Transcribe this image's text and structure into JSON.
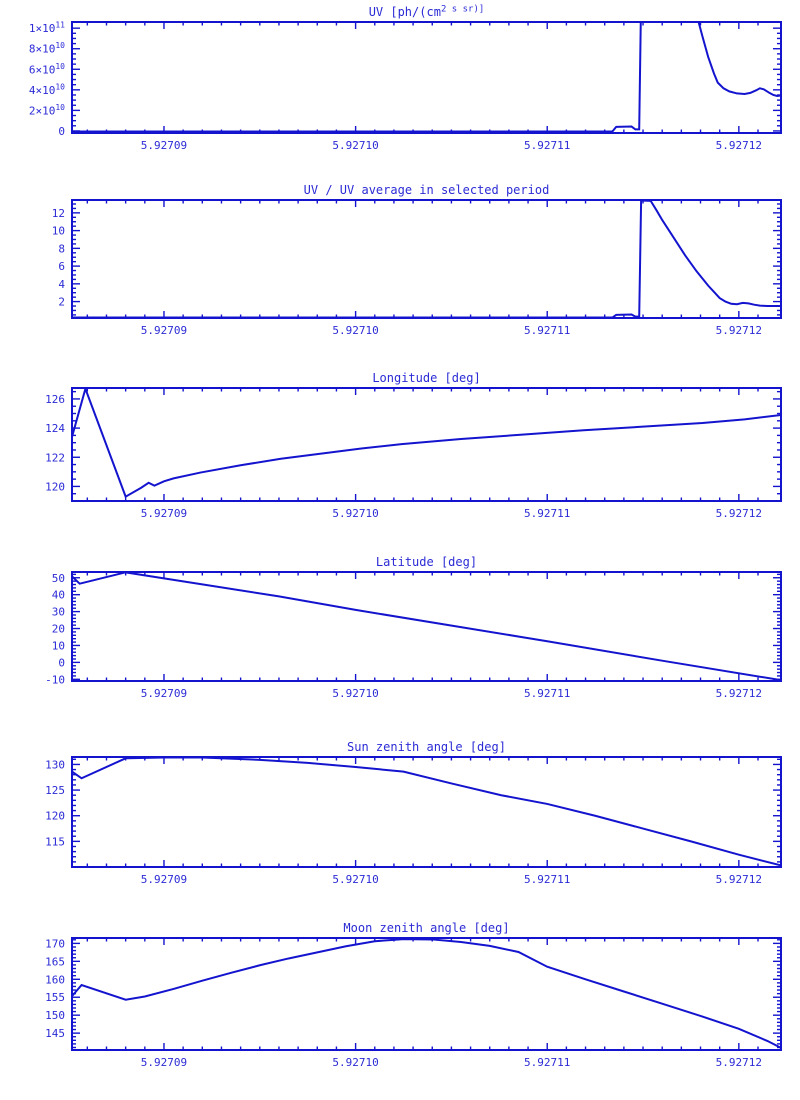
{
  "page": {
    "background": "#ffffff",
    "line_color": "#1414cf",
    "axis_color": "#1414cf",
    "text_color": "#2b2bd6"
  },
  "chart_data": [
    {
      "type": "line",
      "title": "UV [ph/(cm^2 s sr)]",
      "xlabel": "",
      "ylabel": "",
      "legend": "none",
      "grid": false,
      "xlim": [
        5.9270852,
        5.9271222
      ],
      "xticks": {
        "values": [
          5.92709,
          5.9271,
          5.92711,
          5.92712
        ],
        "labels": [
          "5.92709",
          "5.92710",
          "5.92711",
          "5.92712"
        ]
      },
      "x_minor_step": 1e-06,
      "ylim": [
        -2000000000.0,
        106000000000.0
      ],
      "yticks": {
        "values": [
          0,
          20000000000.0,
          40000000000.0,
          60000000000.0,
          80000000000.0,
          100000000000.0
        ],
        "labels": [
          "0",
          "2×10^10",
          "4×10^10",
          "6×10^10",
          "8×10^10",
          "1×10^11"
        ]
      },
      "y_minor_step": 5000000000.0,
      "points": [
        [
          5.9270852,
          -500000000.0
        ],
        [
          5.9271134,
          -500000000.0
        ],
        [
          5.9271136,
          4000000000.0
        ],
        [
          5.9271144,
          4300000000.0
        ],
        [
          5.9271146,
          1500000000.0
        ],
        [
          5.9271148,
          1500000000.0
        ],
        [
          5.9271149,
          130000000000.0
        ],
        [
          5.9271177,
          130000000000.0
        ],
        [
          5.9271179,
          106000000000.0
        ],
        [
          5.9271181,
          92000000000.0
        ],
        [
          5.9271184,
          72000000000.0
        ],
        [
          5.9271187,
          56000000000.0
        ],
        [
          5.9271189,
          47000000000.0
        ],
        [
          5.9271192,
          41500000000.0
        ],
        [
          5.9271195,
          38500000000.0
        ],
        [
          5.9271199,
          36500000000.0
        ],
        [
          5.9271203,
          36000000000.0
        ],
        [
          5.9271206,
          37000000000.0
        ],
        [
          5.9271209,
          39500000000.0
        ],
        [
          5.9271211,
          41500000000.0
        ],
        [
          5.9271213,
          40500000000.0
        ],
        [
          5.9271216,
          37000000000.0
        ],
        [
          5.9271218,
          35000000000.0
        ],
        [
          5.927122,
          34000000000.0
        ],
        [
          5.9271222,
          34500000000.0
        ]
      ]
    },
    {
      "type": "line",
      "title": "UV / UV average in selected period",
      "xlabel": "",
      "ylabel": "",
      "legend": "none",
      "grid": false,
      "xlim": [
        5.9270852,
        5.9271222
      ],
      "xticks": {
        "values": [
          5.92709,
          5.9271,
          5.92711,
          5.92712
        ],
        "labels": [
          "5.92709",
          "5.92710",
          "5.92711",
          "5.92712"
        ]
      },
      "x_minor_step": 1e-06,
      "ylim": [
        0.15,
        13.45
      ],
      "yticks": {
        "values": [
          2,
          4,
          6,
          8,
          10,
          12
        ],
        "labels": [
          "2",
          "4",
          "6",
          "8",
          "10",
          "12"
        ]
      },
      "y_minor_step": 0.5,
      "points": [
        [
          5.9270852,
          0.2
        ],
        [
          5.9271134,
          0.2
        ],
        [
          5.9271136,
          0.5
        ],
        [
          5.9271144,
          0.55
        ],
        [
          5.9271146,
          0.3
        ],
        [
          5.9271148,
          0.3
        ],
        [
          5.9271149,
          13.4
        ],
        [
          5.9271154,
          13.35
        ],
        [
          5.9271157,
          12.3
        ],
        [
          5.927116,
          11.2
        ],
        [
          5.9271163,
          10.2
        ],
        [
          5.9271166,
          9.2
        ],
        [
          5.9271169,
          8.2
        ],
        [
          5.9271172,
          7.2
        ],
        [
          5.9271175,
          6.3
        ],
        [
          5.9271178,
          5.4
        ],
        [
          5.9271181,
          4.6
        ],
        [
          5.9271184,
          3.8
        ],
        [
          5.9271187,
          3.1
        ],
        [
          5.927119,
          2.4
        ],
        [
          5.9271193,
          2.0
        ],
        [
          5.9271196,
          1.75
        ],
        [
          5.9271199,
          1.7
        ],
        [
          5.9271202,
          1.85
        ],
        [
          5.9271205,
          1.8
        ],
        [
          5.9271208,
          1.65
        ],
        [
          5.9271211,
          1.55
        ],
        [
          5.9271215,
          1.5
        ],
        [
          5.9271222,
          1.5
        ]
      ]
    },
    {
      "type": "line",
      "title": "Longitude [deg]",
      "xlabel": "",
      "ylabel": "",
      "legend": "none",
      "grid": false,
      "xlim": [
        5.9270852,
        5.9271222
      ],
      "xticks": {
        "values": [
          5.92709,
          5.9271,
          5.92711,
          5.92712
        ],
        "labels": [
          "5.92709",
          "5.92710",
          "5.92711",
          "5.92712"
        ]
      },
      "x_minor_step": 1e-06,
      "ylim": [
        119.0,
        126.75
      ],
      "yticks": {
        "values": [
          120,
          122,
          124,
          126
        ],
        "labels": [
          "120",
          "122",
          "124",
          "126"
        ]
      },
      "y_minor_step": 0.5,
      "points": [
        [
          5.9270852,
          123.4
        ],
        [
          5.9270859,
          126.7
        ],
        [
          5.927088,
          119.3
        ],
        [
          5.9270888,
          119.9
        ],
        [
          5.9270892,
          120.25
        ],
        [
          5.9270895,
          120.05
        ],
        [
          5.92709,
          120.35
        ],
        [
          5.9270905,
          120.55
        ],
        [
          5.9270919,
          120.95
        ],
        [
          5.927094,
          121.45
        ],
        [
          5.9270961,
          121.9
        ],
        [
          5.9270982,
          122.25
        ],
        [
          5.9271003,
          122.6
        ],
        [
          5.9271024,
          122.9
        ],
        [
          5.9271055,
          123.25
        ],
        [
          5.9271087,
          123.55
        ],
        [
          5.9271119,
          123.85
        ],
        [
          5.927115,
          124.1
        ],
        [
          5.9271181,
          124.35
        ],
        [
          5.9271203,
          124.6
        ],
        [
          5.9271222,
          124.9
        ]
      ]
    },
    {
      "type": "line",
      "title": "Latitude [deg]",
      "xlabel": "",
      "ylabel": "",
      "legend": "none",
      "grid": false,
      "xlim": [
        5.9270852,
        5.9271222
      ],
      "xticks": {
        "values": [
          5.92709,
          5.9271,
          5.92711,
          5.92712
        ],
        "labels": [
          "5.92709",
          "5.92710",
          "5.92711",
          "5.92712"
        ]
      },
      "x_minor_step": 1e-06,
      "ylim": [
        -11.0,
        53.4
      ],
      "yticks": {
        "values": [
          -10,
          0,
          10,
          20,
          30,
          40,
          50
        ],
        "labels": [
          "-10",
          "0",
          "10",
          "20",
          "30",
          "40",
          "50"
        ]
      },
      "y_minor_step": 2,
      "points": [
        [
          5.9270852,
          50.8
        ],
        [
          5.9270856,
          46.5
        ],
        [
          5.927088,
          53.2
        ],
        [
          5.927096,
          39.0
        ],
        [
          5.9271,
          31.0
        ],
        [
          5.92711,
          12.5
        ],
        [
          5.927116,
          1.0
        ],
        [
          5.9271222,
          -10.5
        ]
      ]
    },
    {
      "type": "line",
      "title": "Sun zenith angle [deg]",
      "xlabel": "",
      "ylabel": "",
      "legend": "none",
      "grid": false,
      "xlim": [
        5.9270852,
        5.9271222
      ],
      "xticks": {
        "values": [
          5.92709,
          5.9271,
          5.92711,
          5.92712
        ],
        "labels": [
          "5.92709",
          "5.92710",
          "5.92711",
          "5.92712"
        ]
      },
      "x_minor_step": 1e-06,
      "ylim": [
        110.0,
        131.45
      ],
      "yticks": {
        "values": [
          115,
          120,
          125,
          130
        ],
        "labels": [
          "115",
          "120",
          "125",
          "130"
        ]
      },
      "y_minor_step": 1,
      "points": [
        [
          5.9270852,
          128.6
        ],
        [
          5.9270857,
          127.3
        ],
        [
          5.927088,
          131.2
        ],
        [
          5.92709,
          131.35
        ],
        [
          5.927092,
          131.35
        ],
        [
          5.927095,
          130.9
        ],
        [
          5.9270975,
          130.3
        ],
        [
          5.9271,
          129.5
        ],
        [
          5.9271025,
          128.6
        ],
        [
          5.927105,
          126.3
        ],
        [
          5.9271076,
          124.0
        ],
        [
          5.92711,
          122.3
        ],
        [
          5.9271125,
          120.0
        ],
        [
          5.927115,
          117.5
        ],
        [
          5.9271175,
          115.0
        ],
        [
          5.92712,
          112.4
        ],
        [
          5.9271222,
          110.3
        ]
      ]
    },
    {
      "type": "line",
      "title": "Moon zenith angle [deg]",
      "xlabel": "",
      "ylabel": "",
      "legend": "none",
      "grid": false,
      "xlim": [
        5.9270852,
        5.9271222
      ],
      "xticks": {
        "values": [
          5.92709,
          5.9271,
          5.92711,
          5.92712
        ],
        "labels": [
          "5.92709",
          "5.92710",
          "5.92711",
          "5.92712"
        ]
      },
      "x_minor_step": 1e-06,
      "ylim": [
        140.3,
        171.5
      ],
      "yticks": {
        "values": [
          145,
          150,
          155,
          160,
          165,
          170
        ],
        "labels": [
          "145",
          "150",
          "155",
          "160",
          "165",
          "170"
        ]
      },
      "y_minor_step": 1,
      "points": [
        [
          5.9270852,
          155.3
        ],
        [
          5.9270857,
          158.4
        ],
        [
          5.927088,
          154.3
        ],
        [
          5.927089,
          155.2
        ],
        [
          5.9270905,
          157.3
        ],
        [
          5.927092,
          159.6
        ],
        [
          5.9270935,
          161.8
        ],
        [
          5.927095,
          163.9
        ],
        [
          5.9270965,
          165.8
        ],
        [
          5.927098,
          167.5
        ],
        [
          5.9270995,
          169.2
        ],
        [
          5.927101,
          170.6
        ],
        [
          5.9271025,
          171.2
        ],
        [
          5.927104,
          171.1
        ],
        [
          5.9271055,
          170.4
        ],
        [
          5.927107,
          169.3
        ],
        [
          5.9271085,
          167.6
        ],
        [
          5.92711,
          163.5
        ],
        [
          5.927112,
          160.0
        ],
        [
          5.927114,
          156.6
        ],
        [
          5.927116,
          153.2
        ],
        [
          5.927118,
          149.8
        ],
        [
          5.92712,
          146.2
        ],
        [
          5.9271215,
          142.8
        ],
        [
          5.9271222,
          140.9
        ]
      ]
    }
  ]
}
